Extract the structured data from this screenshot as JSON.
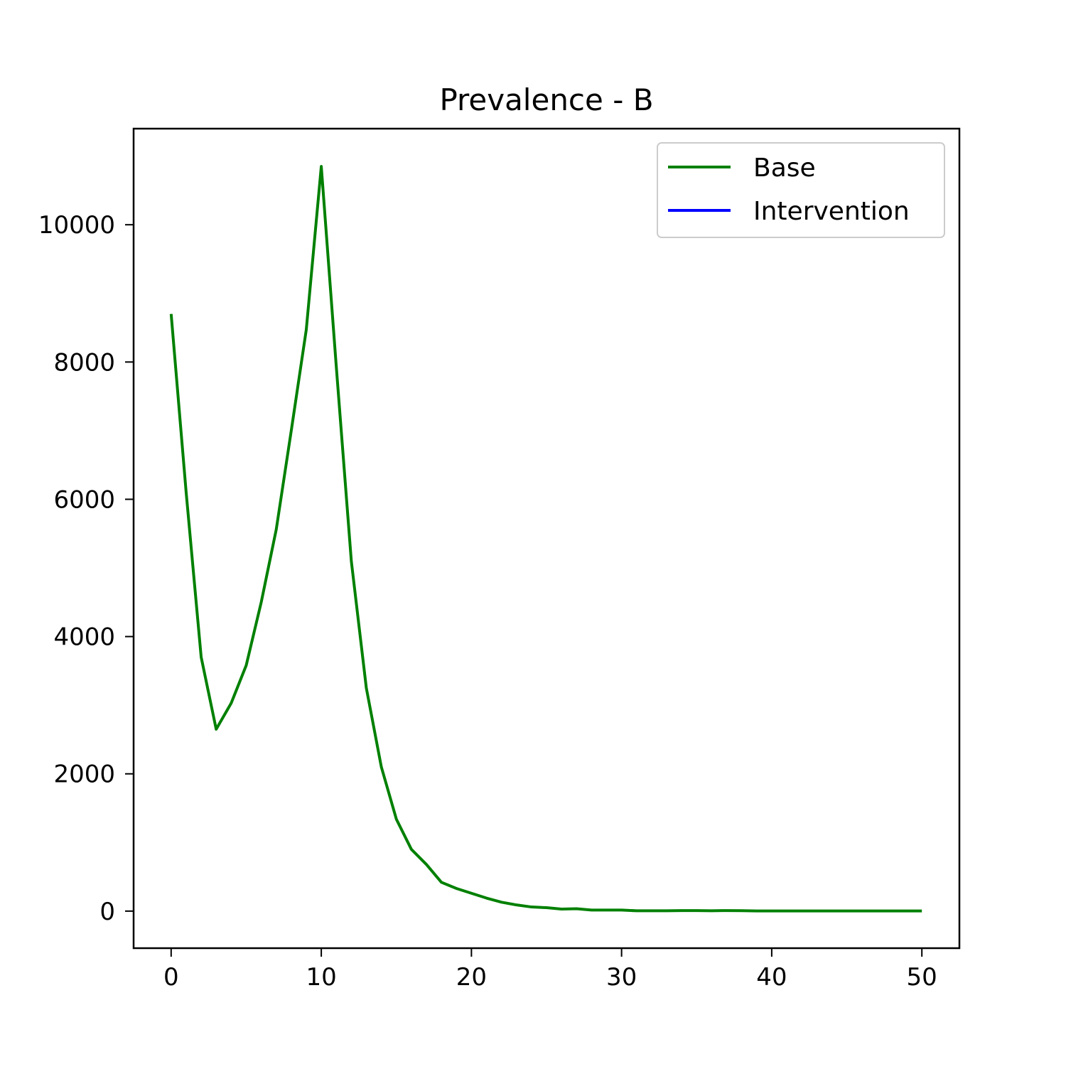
{
  "chart_data": {
    "type": "line",
    "title": "Prevalence - B",
    "xlabel": "",
    "ylabel": "",
    "xlim": [
      -2.5,
      52.5
    ],
    "ylim": [
      -540,
      11400
    ],
    "x_ticks": [
      0,
      10,
      20,
      30,
      40,
      50
    ],
    "y_ticks": [
      0,
      2000,
      4000,
      6000,
      8000,
      10000
    ],
    "grid": false,
    "legend_position": "upper right",
    "series": [
      {
        "name": "Base",
        "color": "#008000",
        "x": [
          0,
          1,
          2,
          3,
          4,
          5,
          6,
          7,
          8,
          9,
          10,
          11,
          12,
          13,
          14,
          15,
          16,
          17,
          18,
          19,
          20,
          21,
          22,
          23,
          24,
          25,
          26,
          27,
          28,
          29,
          30,
          31,
          32,
          33,
          34,
          35,
          36,
          37,
          38,
          39,
          40,
          41,
          42,
          43,
          44,
          45,
          46,
          47,
          48,
          49,
          50
        ],
        "values": [
          8700,
          6100,
          3700,
          2650,
          3030,
          3580,
          4500,
          5560,
          7000,
          8470,
          10850,
          7930,
          5100,
          3250,
          2100,
          1340,
          900,
          680,
          420,
          330,
          260,
          190,
          130,
          90,
          60,
          50,
          30,
          35,
          15,
          15,
          15,
          5,
          5,
          5,
          8,
          8,
          5,
          8,
          6,
          2,
          2,
          2,
          2,
          2,
          2,
          2,
          2,
          2,
          2,
          2,
          2
        ]
      },
      {
        "name": "Intervention",
        "color": "#0000ff",
        "x": [],
        "values": []
      }
    ]
  }
}
